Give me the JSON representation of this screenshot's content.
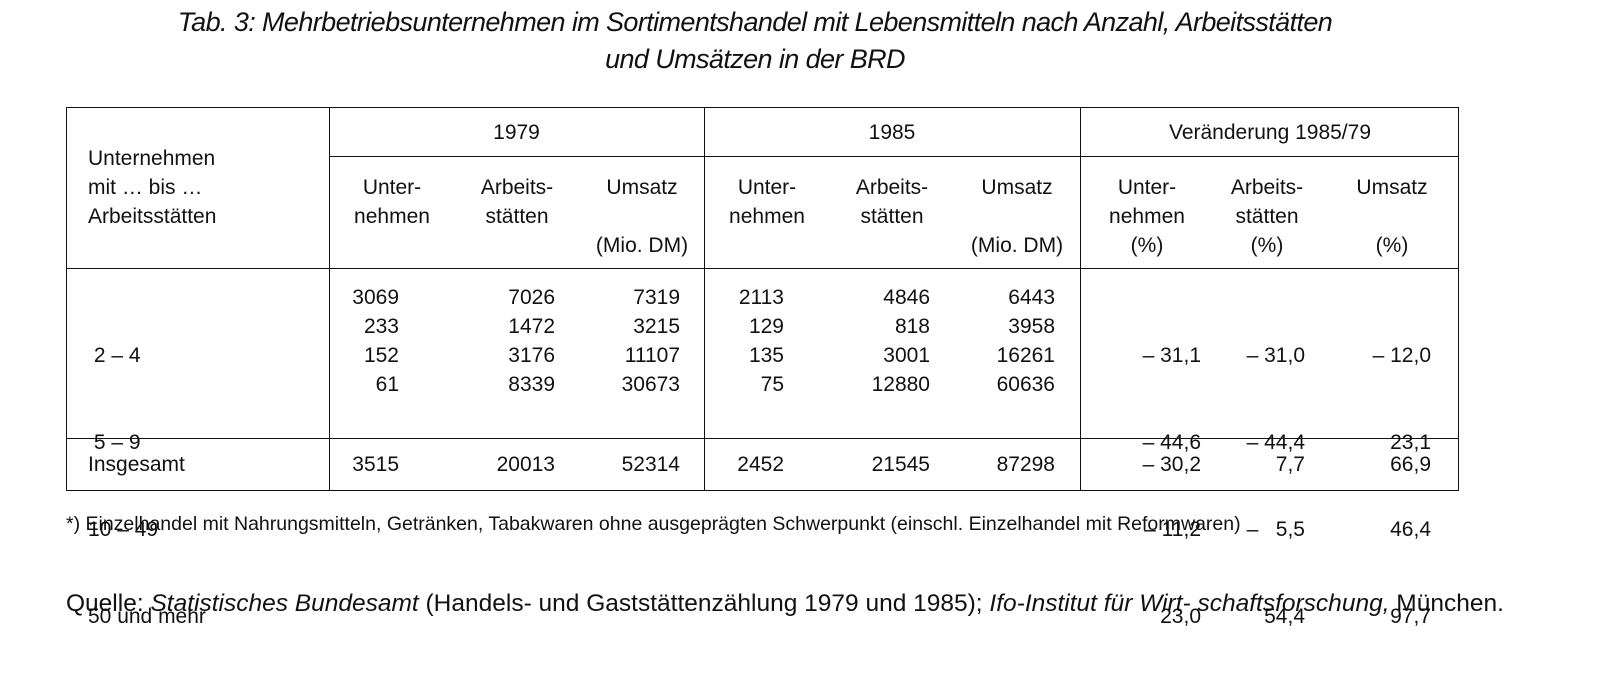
{
  "title": {
    "line1": "Tab. 3: Mehrbetriebsunternehmen im Sortimentshandel mit Lebensmitteln nach Anzahl, Arbeitsstätten",
    "line2": "und Umsätzen in der BRD"
  },
  "table": {
    "row_header_lines": [
      "Unternehmen",
      "mit … bis …",
      "Arbeitsstätten"
    ],
    "groups": [
      "1979",
      "1985",
      "Veränderung 1985/79"
    ],
    "sub": {
      "g1": {
        "c1": [
          "Unter-",
          "nehmen"
        ],
        "c2": [
          "Arbeits-",
          "stätten"
        ],
        "c3": [
          "Umsatz",
          "",
          "(Mio. DM)"
        ]
      },
      "g2": {
        "c1": [
          "Unter-",
          "nehmen"
        ],
        "c2": [
          "Arbeits-",
          "stätten"
        ],
        "c3": [
          "Umsatz",
          "",
          "(Mio. DM)"
        ]
      },
      "g3": {
        "c1": [
          "Unter-",
          "nehmen",
          "(%)"
        ],
        "c2": [
          "Arbeits-",
          "stätten",
          "(%)"
        ],
        "c3": [
          "Umsatz",
          "",
          "(%)"
        ]
      }
    },
    "row_labels": [
      " 2 – 4",
      " 5 – 9",
      "10 – 49",
      "50 und mehr"
    ],
    "columns": {
      "u1979": [
        "3069",
        "233",
        "152",
        "61"
      ],
      "a1979": [
        "7026",
        "1472",
        "3176",
        "8339"
      ],
      "m1979": [
        "7319",
        "3215",
        "11107",
        "30673"
      ],
      "u1985": [
        "2113",
        "129",
        "135",
        "75"
      ],
      "a1985": [
        "4846",
        "818",
        "3001",
        "12880"
      ],
      "m1985": [
        "6443",
        "3958",
        "16261",
        "60636"
      ],
      "uchg": [
        "– 31,1",
        "– 44,6",
        "– 11,2",
        "23,0"
      ],
      "achg": [
        "– 31,0",
        "– 44,4",
        "–   5,5",
        "54,4"
      ],
      "mchg": [
        "– 12,0",
        "23,1",
        "46,4",
        "97,7"
      ]
    },
    "total": {
      "label": "Insgesamt",
      "values": [
        "3515",
        "20013",
        "52314",
        "2452",
        "21545",
        "87298",
        "– 30,2",
        "7,7",
        "66,9"
      ]
    }
  },
  "footnote": "*) Einzelhandel mit Nahrungsmitteln, Getränken, Tabakwaren ohne ausgeprägten Schwerpunkt (einschl. Einzelhandel mit Reformwaren)",
  "source": {
    "prefix": "Quelle: ",
    "org1": "Statistisches Bundesamt",
    "mid": " (Handels- und Gaststättenzählung 1979 und 1985); ",
    "org2": "Ifo-Institut für Wirt- schaftsforschung,",
    "suffix": " München."
  }
}
